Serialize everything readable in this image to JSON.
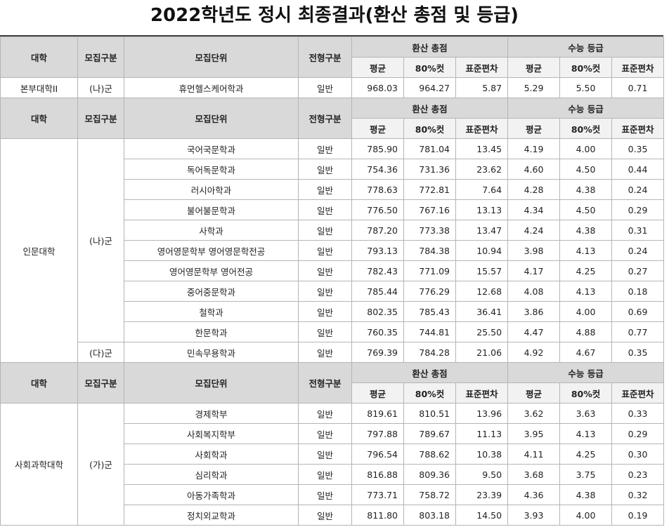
{
  "title": "2022학년도 정시 최종결과(환산 총점 및 등급)",
  "headers": {
    "college": "대학",
    "group": "모집구분",
    "unit": "모집단위",
    "type": "전형구분",
    "score_total": "환산 총점",
    "csat_grade": "수능 등급",
    "avg": "평균",
    "cut80": "80%컷",
    "std": "표준편차"
  },
  "sections": [
    {
      "college": "본부대학II",
      "groups": [
        {
          "group": "(나)군",
          "rows": [
            {
              "unit": "휴먼헬스케어학과",
              "type": "일반",
              "s_avg": "968.03",
              "s_cut": "964.27",
              "s_std": "5.87",
              "g_avg": "5.29",
              "g_cut": "5.50",
              "g_std": "0.71"
            }
          ]
        }
      ]
    },
    {
      "college": "인문대학",
      "groups": [
        {
          "group": "(나)군",
          "rows": [
            {
              "unit": "국어국문학과",
              "type": "일반",
              "s_avg": "785.90",
              "s_cut": "781.04",
              "s_std": "13.45",
              "g_avg": "4.19",
              "g_cut": "4.00",
              "g_std": "0.35"
            },
            {
              "unit": "독어독문학과",
              "type": "일반",
              "s_avg": "754.36",
              "s_cut": "731.36",
              "s_std": "23.62",
              "g_avg": "4.60",
              "g_cut": "4.50",
              "g_std": "0.44"
            },
            {
              "unit": "러시아학과",
              "type": "일반",
              "s_avg": "778.63",
              "s_cut": "772.81",
              "s_std": "7.64",
              "g_avg": "4.28",
              "g_cut": "4.38",
              "g_std": "0.24"
            },
            {
              "unit": "불어불문학과",
              "type": "일반",
              "s_avg": "776.50",
              "s_cut": "767.16",
              "s_std": "13.13",
              "g_avg": "4.34",
              "g_cut": "4.50",
              "g_std": "0.29"
            },
            {
              "unit": "사학과",
              "type": "일반",
              "s_avg": "787.20",
              "s_cut": "773.38",
              "s_std": "13.47",
              "g_avg": "4.24",
              "g_cut": "4.38",
              "g_std": "0.31"
            },
            {
              "unit": "영어영문학부 영어영문학전공",
              "type": "일반",
              "s_avg": "793.13",
              "s_cut": "784.38",
              "s_std": "10.94",
              "g_avg": "3.98",
              "g_cut": "4.13",
              "g_std": "0.24"
            },
            {
              "unit": "영어영문학부 영어전공",
              "type": "일반",
              "s_avg": "782.43",
              "s_cut": "771.09",
              "s_std": "15.57",
              "g_avg": "4.17",
              "g_cut": "4.25",
              "g_std": "0.27"
            },
            {
              "unit": "중어중문학과",
              "type": "일반",
              "s_avg": "785.44",
              "s_cut": "776.29",
              "s_std": "12.68",
              "g_avg": "4.08",
              "g_cut": "4.13",
              "g_std": "0.18"
            },
            {
              "unit": "철학과",
              "type": "일반",
              "s_avg": "802.35",
              "s_cut": "785.43",
              "s_std": "36.41",
              "g_avg": "3.86",
              "g_cut": "4.00",
              "g_std": "0.69"
            },
            {
              "unit": "한문학과",
              "type": "일반",
              "s_avg": "760.35",
              "s_cut": "744.81",
              "s_std": "25.50",
              "g_avg": "4.47",
              "g_cut": "4.88",
              "g_std": "0.77"
            }
          ]
        },
        {
          "group": "(다)군",
          "rows": [
            {
              "unit": "민속무용학과",
              "type": "일반",
              "s_avg": "769.39",
              "s_cut": "784.28",
              "s_std": "21.06",
              "g_avg": "4.92",
              "g_cut": "4.67",
              "g_std": "0.35"
            }
          ]
        }
      ]
    },
    {
      "college": "사회과학대학",
      "groups": [
        {
          "group": "(가)군",
          "rows": [
            {
              "unit": "경제학부",
              "type": "일반",
              "s_avg": "819.61",
              "s_cut": "810.51",
              "s_std": "13.96",
              "g_avg": "3.62",
              "g_cut": "3.63",
              "g_std": "0.33"
            },
            {
              "unit": "사회복지학부",
              "type": "일반",
              "s_avg": "797.88",
              "s_cut": "789.67",
              "s_std": "11.13",
              "g_avg": "3.95",
              "g_cut": "4.13",
              "g_std": "0.29"
            },
            {
              "unit": "사회학과",
              "type": "일반",
              "s_avg": "796.54",
              "s_cut": "788.62",
              "s_std": "10.38",
              "g_avg": "4.11",
              "g_cut": "4.25",
              "g_std": "0.30"
            },
            {
              "unit": "심리학과",
              "type": "일반",
              "s_avg": "816.88",
              "s_cut": "809.36",
              "s_std": "9.50",
              "g_avg": "3.68",
              "g_cut": "3.75",
              "g_std": "0.23"
            },
            {
              "unit": "아동가족학과",
              "type": "일반",
              "s_avg": "773.71",
              "s_cut": "758.72",
              "s_std": "23.39",
              "g_avg": "4.36",
              "g_cut": "4.38",
              "g_std": "0.32"
            },
            {
              "unit": "정치외교학과",
              "type": "일반",
              "s_avg": "811.80",
              "s_cut": "803.18",
              "s_std": "14.50",
              "g_avg": "3.93",
              "g_cut": "4.00",
              "g_std": "0.19"
            }
          ]
        }
      ]
    }
  ]
}
